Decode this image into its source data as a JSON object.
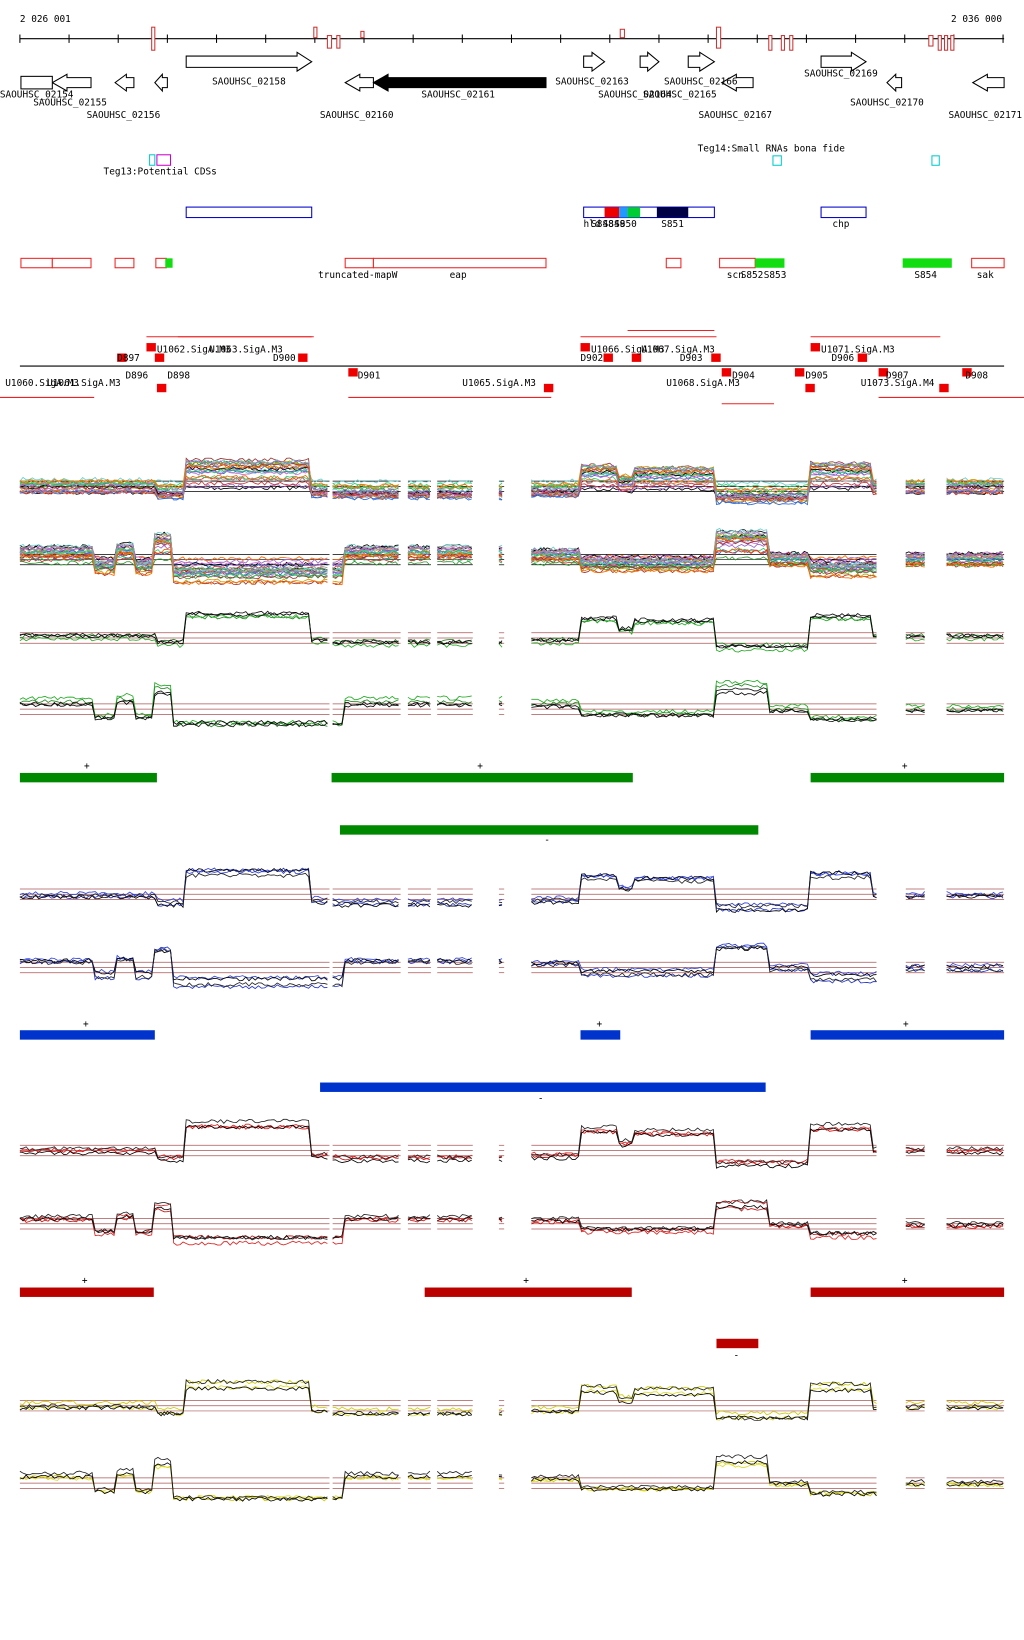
{
  "ruler": {
    "start_label": "2 026 001",
    "end_label": "2 036 000"
  },
  "genes": [
    "SAOUHSC_02154",
    "SAOUHSC_02155",
    "SAOUHSC_02156",
    "SAOUHSC_02158",
    "SAOUHSC_02160",
    "SAOUHSC_02161",
    "SAOUHSC_02163",
    "SAOUHSC_02164",
    "SAOUHSC_02165",
    "SAOUHSC_02166",
    "SAOUHSC_02167",
    "SAOUHSC_02169",
    "SAOUHSC_02170",
    "SAOUHSC_02171"
  ],
  "tracks": {
    "teg13": "Teg13:Potential CDSs",
    "teg14": "Teg14:Small RNAs bona fide"
  },
  "srna_labels": [
    "hld",
    "S848",
    "S849",
    "S850",
    "S851",
    "chp"
  ],
  "feature_labels": [
    "truncated-mapW",
    "eap",
    "scn",
    "S852",
    "S853",
    "S854",
    "sak"
  ],
  "promoter_labels": [
    "U1060.SigA.M3",
    "U1061.SigA.M3",
    "D896",
    "D897",
    "D898",
    "U1062.SigA.M3",
    "U1063.SigA.M3",
    "D900",
    "D901",
    "U1065.SigA.M3",
    "U1066.SigA.M3",
    "U1067.SigA.M3",
    "D902",
    "D903",
    "D904",
    "U1068.SigA.M3",
    "D905",
    "U1071.SigA.M3",
    "D906",
    "D907",
    "U1073.SigA.M4",
    "D908"
  ],
  "strand_markers": [
    "+",
    "+",
    "+",
    "-",
    "+",
    "+",
    "+",
    "-",
    "+",
    "+",
    "+",
    "-"
  ]
}
